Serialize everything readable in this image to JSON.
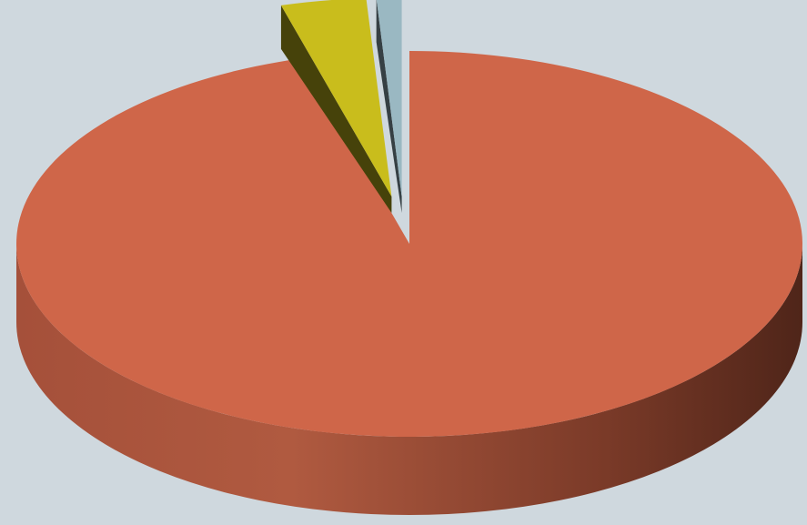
{
  "chart_data": {
    "type": "pie",
    "style": "3d-exploded",
    "title": "",
    "legend": "none",
    "data_labels": "none",
    "slices": [
      {
        "value": 95.6,
        "color": "#cf6649",
        "exploded": false
      },
      {
        "value": 3.4,
        "color": "#c9bd1c",
        "exploded": true
      },
      {
        "value": 1.0,
        "color": "#9ab8c2",
        "exploded": true
      }
    ]
  }
}
